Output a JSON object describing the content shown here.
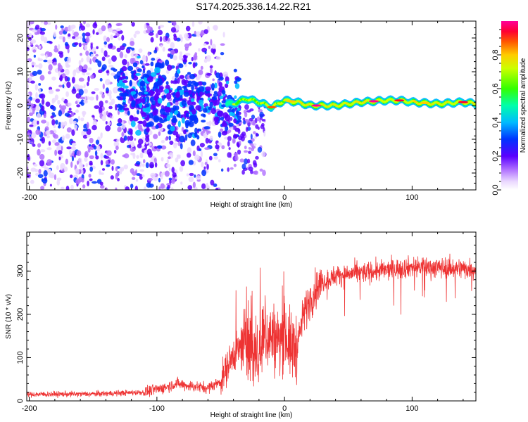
{
  "title": "S174.2025.336.14.22.R21",
  "chart_data": [
    {
      "type": "heatmap",
      "xlabel": "Height of straight line (km)",
      "ylabel": "Frequency (Hz)",
      "xlim": [
        -202,
        150
      ],
      "ylim": [
        -25,
        25
      ],
      "xticks": [
        -200,
        -100,
        0,
        100
      ],
      "xtick_labels": [
        "-200",
        "-100",
        "0",
        "100"
      ],
      "yticks": [
        -20,
        -10,
        0,
        10,
        20
      ],
      "ytick_labels": [
        "-20",
        "-10",
        "0",
        "10",
        "20"
      ],
      "colorbar": {
        "label": "Normalized spectral amplitude",
        "range": [
          0,
          1
        ],
        "ticks": [
          0,
          0.2,
          0.4,
          0.6,
          0.8
        ],
        "tick_labels": [
          "0.0",
          "0.2",
          "0.4",
          "0.6",
          "0.8"
        ],
        "colormap": "rainbow (white-violet-blue-cyan-green-yellow-red-magenta)"
      },
      "trace_center_hz": [
        [
          -40,
          0.5
        ],
        [
          -30,
          2.0
        ],
        [
          -20,
          1.0
        ],
        [
          -10,
          -0.5
        ],
        [
          0,
          1.5
        ],
        [
          10,
          1.0
        ],
        [
          20,
          0.0
        ],
        [
          40,
          0.0
        ],
        [
          60,
          1.0
        ],
        [
          80,
          1.5
        ],
        [
          90,
          1.5
        ],
        [
          100,
          1.0
        ],
        [
          120,
          0.5
        ],
        [
          140,
          1.0
        ],
        [
          150,
          0.5
        ]
      ]
    },
    {
      "type": "line",
      "xlabel": "Height of straight line (km)",
      "ylabel": "SNR (10 * v/v)",
      "xlim": [
        -202,
        150
      ],
      "ylim": [
        0,
        390
      ],
      "xticks": [
        -200,
        -100,
        0,
        100
      ],
      "xtick_labels": [
        "-200",
        "-100",
        "0",
        "100"
      ],
      "yticks": [
        0,
        100,
        200,
        300
      ],
      "ytick_labels": [
        "0",
        "100",
        "200",
        "300"
      ],
      "series": [
        {
          "name": "SNR",
          "color": "#ee3333",
          "trend": [
            [
              -202,
              15
            ],
            [
              -150,
              16
            ],
            [
              -110,
              20
            ],
            [
              -95,
              30
            ],
            [
              -85,
              40
            ],
            [
              -75,
              35
            ],
            [
              -60,
              30
            ],
            [
              -50,
              45
            ],
            [
              -40,
              110
            ],
            [
              -30,
              130
            ],
            [
              -20,
              100
            ],
            [
              -15,
              150
            ],
            [
              -10,
              150
            ],
            [
              -5,
              130
            ],
            [
              0,
              165
            ],
            [
              5,
              120
            ],
            [
              10,
              130
            ],
            [
              15,
              200
            ],
            [
              20,
              235
            ],
            [
              25,
              260
            ],
            [
              30,
              275
            ],
            [
              40,
              290
            ],
            [
              60,
              296
            ],
            [
              80,
              302
            ],
            [
              100,
              310
            ],
            [
              120,
              308
            ],
            [
              150,
              305
            ]
          ]
        }
      ]
    }
  ]
}
